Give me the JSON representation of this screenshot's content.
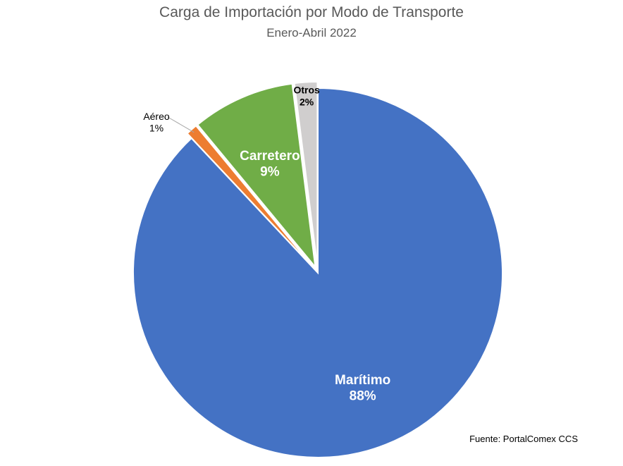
{
  "chart_data": {
    "type": "pie",
    "title": "Carga de Importación por Modo de Transporte",
    "subtitle": "Enero-Abril 2022",
    "source": "Fuente: PortalComex CCS",
    "slices": [
      {
        "label": "Marítimo",
        "value": 88,
        "value_label": "88%",
        "color": "#4472C4",
        "label_color": "#ffffff"
      },
      {
        "label": "Aéreo",
        "value": 1,
        "value_label": "1%",
        "color": "#ED7D31",
        "label_color": "#000000"
      },
      {
        "label": "Carretero",
        "value": 9,
        "value_label": "9%",
        "color": "#70AD47",
        "label_color": "#ffffff"
      },
      {
        "label": "Otros",
        "value": 2,
        "value_label": "2%",
        "color": "#D0CECE",
        "label_color": "#000000"
      }
    ],
    "legend": "none",
    "start_angle_deg": 0,
    "direction": "clockwise",
    "exploded": true
  }
}
